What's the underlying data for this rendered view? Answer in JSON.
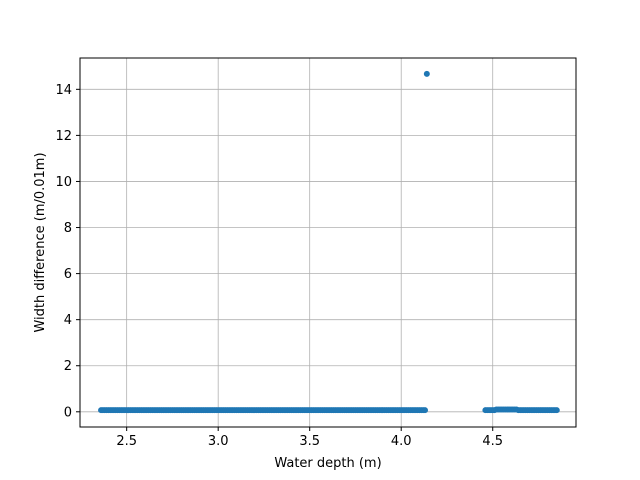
{
  "chart_data": {
    "type": "scatter",
    "title": "",
    "xlabel": "Water depth (m)",
    "ylabel": "Width difference (m/0.01m)",
    "xlim": [
      2.245,
      4.955
    ],
    "ylim": [
      -0.66,
      15.36
    ],
    "grid": true,
    "marker_color": "#1f77b4",
    "x_ticks": [
      2.5,
      3.0,
      3.5,
      4.0,
      4.5
    ],
    "x_tick_labels": [
      "2.5",
      "3.0",
      "3.5",
      "4.0",
      "4.5"
    ],
    "y_ticks": [
      0,
      2,
      4,
      6,
      8,
      10,
      12,
      14
    ],
    "y_tick_labels": [
      "0",
      "2",
      "4",
      "6",
      "8",
      "10",
      "12",
      "14"
    ],
    "segments": [
      {
        "x_start": 2.36,
        "x_end": 4.13,
        "step": 0.01,
        "y": 0.07
      },
      {
        "x_start": 4.46,
        "x_end": 4.51,
        "step": 0.01,
        "y": 0.07
      },
      {
        "x_start": 4.52,
        "x_end": 4.63,
        "step": 0.01,
        "y": 0.1
      },
      {
        "x_start": 4.64,
        "x_end": 4.85,
        "step": 0.01,
        "y": 0.07
      }
    ],
    "points": [
      {
        "x": 4.14,
        "y": 14.67
      }
    ]
  }
}
